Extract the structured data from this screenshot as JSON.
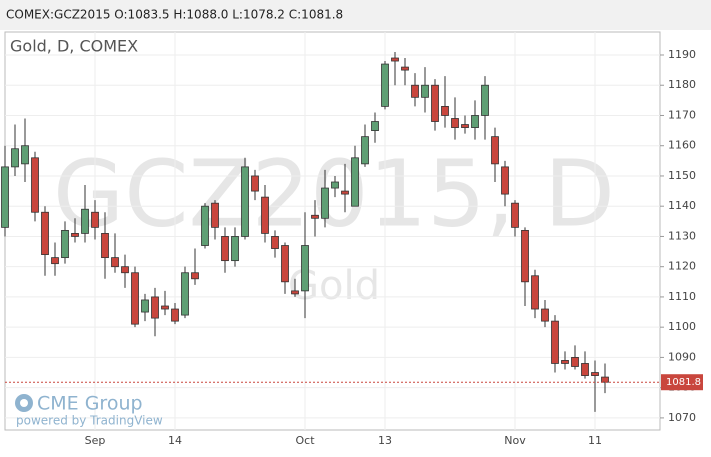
{
  "header": "COMEX:GCZ2015 O:1083.5 H:1088.0 L:1078.2 C:1081.8",
  "chart_data": {
    "type": "candlestick",
    "title": "Gold, D, COMEX",
    "watermark": "GCZ2015, D",
    "watermark_sub": "Gold",
    "logo": "CME Group",
    "credit": "powered by TradingView",
    "categories": [
      null,
      null,
      null,
      null,
      null,
      null,
      null,
      null,
      null,
      "Sep",
      null,
      null,
      null,
      null,
      null,
      null,
      null,
      "14",
      null,
      null,
      null,
      null,
      null,
      null,
      null,
      null,
      null,
      null,
      null,
      null,
      "Oct",
      null,
      null,
      null,
      null,
      null,
      null,
      null,
      "13",
      null,
      null,
      null,
      null,
      null,
      null,
      null,
      null,
      null,
      null,
      null,
      null,
      "Nov",
      null,
      null,
      null,
      null,
      null,
      null,
      null,
      "11",
      null
    ],
    "open": [
      1133,
      1153,
      1154,
      1156,
      1138,
      1123,
      1123,
      1131,
      1131,
      1138,
      1131,
      1123,
      1120,
      1118,
      1105,
      1110,
      1107,
      1106,
      1104,
      1118,
      1127,
      1141,
      1130,
      1122,
      1130,
      1150,
      1143,
      1130,
      1127,
      1112,
      1112,
      1137,
      1136,
      1146,
      1145,
      1140,
      1154,
      1165,
      1173,
      1189,
      1186,
      1180,
      1176,
      1180,
      1173,
      1169,
      1167,
      1166,
      1170,
      1163,
      1153,
      1141,
      1132,
      1117,
      1106,
      1102,
      1089,
      1090,
      1088,
      1085,
      1083.5
    ],
    "high": [
      1160,
      1167,
      1169,
      1158,
      1140,
      1128,
      1135,
      1136,
      1147,
      1142,
      1138,
      1131,
      1124,
      1120,
      1111,
      1113,
      1112,
      1108,
      1120,
      1126,
      1141,
      1142,
      1133,
      1133,
      1156,
      1152,
      1147,
      1132,
      1128,
      1116,
      1138,
      1142,
      1152,
      1150,
      1154,
      1160,
      1167,
      1171,
      1188,
      1191,
      1189,
      1184,
      1186,
      1182,
      1183,
      1176,
      1170,
      1175,
      1183,
      1166,
      1155,
      1142,
      1133,
      1119,
      1109,
      1104,
      1092,
      1094,
      1092,
      1089,
      1088
    ],
    "low": [
      1130,
      1150,
      1148,
      1135,
      1117,
      1117,
      1121,
      1128,
      1128,
      1129,
      1116,
      1118,
      1113,
      1100,
      1102,
      1097,
      1104,
      1101,
      1103,
      1114,
      1126,
      1129,
      1118,
      1120,
      1129,
      1142,
      1128,
      1123,
      1111,
      1110,
      1103,
      1130,
      1133,
      1143,
      1138,
      1140,
      1153,
      1161,
      1172,
      1180,
      1180,
      1173,
      1171,
      1165,
      1166,
      1162,
      1164,
      1162,
      1162,
      1148,
      1140,
      1130,
      1107,
      1103,
      1100,
      1085,
      1086,
      1086,
      1083,
      1072,
      1078.2
    ],
    "close": [
      1153,
      1159,
      1160,
      1138,
      1124,
      1121,
      1132,
      1130,
      1139,
      1133,
      1123,
      1120,
      1118,
      1101,
      1109,
      1103,
      1106,
      1102,
      1118,
      1116,
      1140,
      1133,
      1122,
      1130,
      1153,
      1145,
      1131,
      1126,
      1115,
      1111,
      1127,
      1136,
      1146,
      1148,
      1144,
      1156,
      1163,
      1168,
      1187,
      1188,
      1185,
      1176,
      1180,
      1168,
      1170,
      1166,
      1166,
      1170,
      1180,
      1154,
      1144,
      1133,
      1115,
      1106,
      1102,
      1088,
      1088,
      1087,
      1084,
      1084,
      1081.8
    ],
    "up_color": "#5f9f74",
    "down_color": "#c9463d",
    "ylim": [
      1066,
      1197.6
    ],
    "yticks": [
      1070,
      1080,
      1090,
      1100,
      1110,
      1120,
      1130,
      1140,
      1150,
      1160,
      1170,
      1180,
      1190
    ],
    "grid": true
  }
}
